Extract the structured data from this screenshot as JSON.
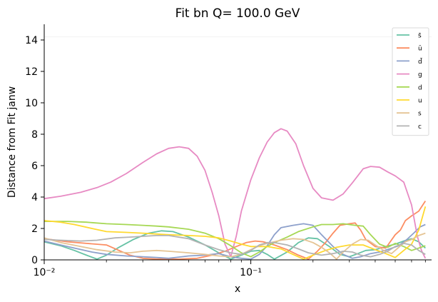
{
  "chart_data": {
    "type": "line",
    "title": "Fit bn Q= 100.0 GeV",
    "xlabel": "x",
    "ylabel": "Distance from Fit janw",
    "xscale": "log",
    "xlim": [
      0.01,
      0.75
    ],
    "ylim": [
      0,
      15
    ],
    "yticks": [
      0,
      2,
      4,
      6,
      8,
      10,
      12,
      14
    ],
    "xticks": [
      {
        "value": 0.01,
        "label": "10⁻²"
      },
      {
        "value": 0.1,
        "label": "10⁻¹"
      }
    ],
    "legend_position": "top-right",
    "grid": false,
    "series": [
      {
        "name": "s̄",
        "color": "#66c2a5",
        "points": [
          [
            0.01,
            1.15
          ],
          [
            0.012,
            0.9
          ],
          [
            0.014,
            0.6
          ],
          [
            0.016,
            0.3
          ],
          [
            0.018,
            0.05
          ],
          [
            0.02,
            0.3
          ],
          [
            0.023,
            0.8
          ],
          [
            0.027,
            1.3
          ],
          [
            0.032,
            1.7
          ],
          [
            0.037,
            1.85
          ],
          [
            0.042,
            1.8
          ],
          [
            0.05,
            1.45
          ],
          [
            0.06,
            0.95
          ],
          [
            0.07,
            0.45
          ],
          [
            0.08,
            0.05
          ],
          [
            0.09,
            0.3
          ],
          [
            0.1,
            0.55
          ],
          [
            0.11,
            0.6
          ],
          [
            0.12,
            0.35
          ],
          [
            0.13,
            0.05
          ],
          [
            0.15,
            0.5
          ],
          [
            0.17,
            1.1
          ],
          [
            0.19,
            1.4
          ],
          [
            0.21,
            1.35
          ],
          [
            0.24,
            0.85
          ],
          [
            0.27,
            0.35
          ],
          [
            0.3,
            0.2
          ],
          [
            0.33,
            0.4
          ],
          [
            0.36,
            0.6
          ],
          [
            0.4,
            0.65
          ],
          [
            0.45,
            0.85
          ],
          [
            0.5,
            1.0
          ],
          [
            0.55,
            1.2
          ],
          [
            0.6,
            1.35
          ],
          [
            0.65,
            1.15
          ],
          [
            0.7,
            0.75
          ]
        ]
      },
      {
        "name": "ū",
        "color": "#fc8d62",
        "points": [
          [
            0.01,
            1.35
          ],
          [
            0.013,
            1.15
          ],
          [
            0.016,
            1.05
          ],
          [
            0.02,
            0.95
          ],
          [
            0.023,
            0.6
          ],
          [
            0.026,
            0.3
          ],
          [
            0.03,
            0.1
          ],
          [
            0.035,
            0.05
          ],
          [
            0.045,
            0.05
          ],
          [
            0.055,
            0.1
          ],
          [
            0.065,
            0.3
          ],
          [
            0.075,
            0.55
          ],
          [
            0.085,
            0.85
          ],
          [
            0.095,
            1.1
          ],
          [
            0.105,
            1.2
          ],
          [
            0.115,
            1.15
          ],
          [
            0.13,
            0.95
          ],
          [
            0.15,
            0.65
          ],
          [
            0.17,
            0.3
          ],
          [
            0.19,
            0.05
          ],
          [
            0.21,
            0.55
          ],
          [
            0.23,
            1.1
          ],
          [
            0.25,
            1.7
          ],
          [
            0.27,
            2.2
          ],
          [
            0.3,
            2.3
          ],
          [
            0.32,
            2.35
          ],
          [
            0.34,
            1.9
          ],
          [
            0.36,
            1.3
          ],
          [
            0.4,
            0.85
          ],
          [
            0.45,
            0.75
          ],
          [
            0.5,
            1.6
          ],
          [
            0.53,
            1.9
          ],
          [
            0.56,
            2.5
          ],
          [
            0.6,
            2.8
          ],
          [
            0.65,
            3.1
          ],
          [
            0.7,
            3.75
          ]
        ]
      },
      {
        "name": "d̄",
        "color": "#8da0cb",
        "points": [
          [
            0.01,
            1.2
          ],
          [
            0.012,
            0.95
          ],
          [
            0.014,
            0.75
          ],
          [
            0.017,
            0.5
          ],
          [
            0.02,
            0.35
          ],
          [
            0.025,
            0.25
          ],
          [
            0.03,
            0.2
          ],
          [
            0.035,
            0.15
          ],
          [
            0.04,
            0.1
          ],
          [
            0.05,
            0.25
          ],
          [
            0.06,
            0.3
          ],
          [
            0.07,
            0.4
          ],
          [
            0.08,
            0.2
          ],
          [
            0.09,
            0.1
          ],
          [
            0.1,
            0.05
          ],
          [
            0.11,
            0.35
          ],
          [
            0.12,
            0.9
          ],
          [
            0.13,
            1.6
          ],
          [
            0.14,
            2.05
          ],
          [
            0.16,
            2.2
          ],
          [
            0.18,
            2.3
          ],
          [
            0.2,
            2.2
          ],
          [
            0.22,
            1.6
          ],
          [
            0.25,
            0.85
          ],
          [
            0.28,
            0.35
          ],
          [
            0.31,
            0.1
          ],
          [
            0.34,
            0.2
          ],
          [
            0.38,
            0.4
          ],
          [
            0.42,
            0.5
          ],
          [
            0.47,
            0.7
          ],
          [
            0.52,
            0.9
          ],
          [
            0.57,
            1.3
          ],
          [
            0.62,
            1.75
          ],
          [
            0.66,
            2.1
          ],
          [
            0.7,
            2.25
          ]
        ]
      },
      {
        "name": "g",
        "color": "#e78ac3",
        "points": [
          [
            0.01,
            3.9
          ],
          [
            0.012,
            4.05
          ],
          [
            0.015,
            4.3
          ],
          [
            0.018,
            4.6
          ],
          [
            0.021,
            4.95
          ],
          [
            0.025,
            5.5
          ],
          [
            0.03,
            6.2
          ],
          [
            0.035,
            6.75
          ],
          [
            0.04,
            7.1
          ],
          [
            0.045,
            7.2
          ],
          [
            0.05,
            7.1
          ],
          [
            0.055,
            6.6
          ],
          [
            0.06,
            5.7
          ],
          [
            0.065,
            4.3
          ],
          [
            0.07,
            2.8
          ],
          [
            0.075,
            1.0
          ],
          [
            0.08,
            0.2
          ],
          [
            0.085,
            1.5
          ],
          [
            0.09,
            3.1
          ],
          [
            0.1,
            5.1
          ],
          [
            0.11,
            6.5
          ],
          [
            0.12,
            7.5
          ],
          [
            0.13,
            8.1
          ],
          [
            0.14,
            8.35
          ],
          [
            0.15,
            8.2
          ],
          [
            0.165,
            7.4
          ],
          [
            0.18,
            6.0
          ],
          [
            0.2,
            4.55
          ],
          [
            0.22,
            3.95
          ],
          [
            0.25,
            3.8
          ],
          [
            0.28,
            4.2
          ],
          [
            0.31,
            4.9
          ],
          [
            0.35,
            5.8
          ],
          [
            0.38,
            5.95
          ],
          [
            0.42,
            5.9
          ],
          [
            0.46,
            5.6
          ],
          [
            0.5,
            5.35
          ],
          [
            0.55,
            4.95
          ],
          [
            0.6,
            3.5
          ],
          [
            0.64,
            1.5
          ],
          [
            0.67,
            0.6
          ],
          [
            0.7,
            0.1
          ]
        ]
      },
      {
        "name": "d",
        "color": "#a6d854",
        "points": [
          [
            0.01,
            2.45
          ],
          [
            0.013,
            2.45
          ],
          [
            0.016,
            2.4
          ],
          [
            0.02,
            2.3
          ],
          [
            0.025,
            2.25
          ],
          [
            0.03,
            2.2
          ],
          [
            0.035,
            2.15
          ],
          [
            0.04,
            2.1
          ],
          [
            0.05,
            1.95
          ],
          [
            0.06,
            1.7
          ],
          [
            0.07,
            1.35
          ],
          [
            0.08,
            0.9
          ],
          [
            0.09,
            0.45
          ],
          [
            0.1,
            0.2
          ],
          [
            0.11,
            0.5
          ],
          [
            0.12,
            0.85
          ],
          [
            0.13,
            1.1
          ],
          [
            0.15,
            1.45
          ],
          [
            0.17,
            1.8
          ],
          [
            0.2,
            2.1
          ],
          [
            0.22,
            2.25
          ],
          [
            0.25,
            2.25
          ],
          [
            0.28,
            2.3
          ],
          [
            0.32,
            2.2
          ],
          [
            0.35,
            2.15
          ],
          [
            0.38,
            1.6
          ],
          [
            0.42,
            1.0
          ],
          [
            0.46,
            0.8
          ],
          [
            0.5,
            1.05
          ],
          [
            0.55,
            0.85
          ],
          [
            0.6,
            0.6
          ],
          [
            0.65,
            0.75
          ],
          [
            0.7,
            0.9
          ]
        ]
      },
      {
        "name": "u",
        "color": "#ffd92f",
        "points": [
          [
            0.01,
            2.5
          ],
          [
            0.012,
            2.4
          ],
          [
            0.014,
            2.25
          ],
          [
            0.017,
            2.0
          ],
          [
            0.02,
            1.8
          ],
          [
            0.025,
            1.75
          ],
          [
            0.03,
            1.7
          ],
          [
            0.04,
            1.6
          ],
          [
            0.05,
            1.55
          ],
          [
            0.06,
            1.5
          ],
          [
            0.07,
            1.4
          ],
          [
            0.08,
            1.2
          ],
          [
            0.09,
            1.0
          ],
          [
            0.1,
            0.85
          ],
          [
            0.12,
            0.85
          ],
          [
            0.14,
            0.7
          ],
          [
            0.16,
            0.35
          ],
          [
            0.18,
            0.05
          ],
          [
            0.2,
            0.3
          ],
          [
            0.23,
            0.6
          ],
          [
            0.26,
            0.8
          ],
          [
            0.3,
            0.95
          ],
          [
            0.35,
            0.95
          ],
          [
            0.4,
            0.65
          ],
          [
            0.45,
            0.4
          ],
          [
            0.5,
            0.15
          ],
          [
            0.55,
            0.6
          ],
          [
            0.6,
            1.0
          ],
          [
            0.65,
            1.9
          ],
          [
            0.7,
            3.4
          ]
        ]
      },
      {
        "name": "s",
        "color": "#e5c494",
        "points": [
          [
            0.01,
            1.4
          ],
          [
            0.012,
            1.1
          ],
          [
            0.015,
            0.85
          ],
          [
            0.018,
            0.65
          ],
          [
            0.022,
            0.5
          ],
          [
            0.026,
            0.45
          ],
          [
            0.03,
            0.55
          ],
          [
            0.035,
            0.6
          ],
          [
            0.04,
            0.55
          ],
          [
            0.05,
            0.45
          ],
          [
            0.06,
            0.35
          ],
          [
            0.07,
            0.25
          ],
          [
            0.08,
            0.2
          ],
          [
            0.09,
            0.35
          ],
          [
            0.1,
            0.65
          ],
          [
            0.11,
            0.9
          ],
          [
            0.12,
            1.05
          ],
          [
            0.14,
            1.25
          ],
          [
            0.16,
            1.35
          ],
          [
            0.18,
            1.3
          ],
          [
            0.2,
            1.1
          ],
          [
            0.22,
            0.8
          ],
          [
            0.24,
            0.45
          ],
          [
            0.26,
            0.05
          ],
          [
            0.28,
            0.5
          ],
          [
            0.31,
            1.0
          ],
          [
            0.34,
            1.3
          ],
          [
            0.37,
            1.25
          ],
          [
            0.4,
            0.95
          ],
          [
            0.44,
            0.6
          ],
          [
            0.48,
            0.4
          ],
          [
            0.52,
            0.8
          ],
          [
            0.56,
            1.15
          ],
          [
            0.6,
            1.3
          ],
          [
            0.65,
            1.55
          ],
          [
            0.7,
            1.7
          ]
        ]
      },
      {
        "name": "c",
        "color": "#b3b3b3",
        "points": [
          [
            0.01,
            1.3
          ],
          [
            0.012,
            1.25
          ],
          [
            0.015,
            1.2
          ],
          [
            0.018,
            1.25
          ],
          [
            0.022,
            1.4
          ],
          [
            0.026,
            1.45
          ],
          [
            0.03,
            1.5
          ],
          [
            0.035,
            1.55
          ],
          [
            0.04,
            1.55
          ],
          [
            0.05,
            1.35
          ],
          [
            0.06,
            0.95
          ],
          [
            0.07,
            0.65
          ],
          [
            0.08,
            0.45
          ],
          [
            0.09,
            0.35
          ],
          [
            0.1,
            0.6
          ],
          [
            0.11,
            0.95
          ],
          [
            0.12,
            1.1
          ],
          [
            0.13,
            1.1
          ],
          [
            0.15,
            0.95
          ],
          [
            0.17,
            0.7
          ],
          [
            0.19,
            0.45
          ],
          [
            0.22,
            0.3
          ],
          [
            0.25,
            0.4
          ],
          [
            0.28,
            0.55
          ],
          [
            0.31,
            0.5
          ],
          [
            0.34,
            0.3
          ],
          [
            0.38,
            0.2
          ],
          [
            0.42,
            0.35
          ],
          [
            0.46,
            0.55
          ],
          [
            0.5,
            0.85
          ],
          [
            0.55,
            1.05
          ],
          [
            0.6,
            0.95
          ],
          [
            0.65,
            0.6
          ],
          [
            0.7,
            0.35
          ]
        ]
      }
    ]
  }
}
